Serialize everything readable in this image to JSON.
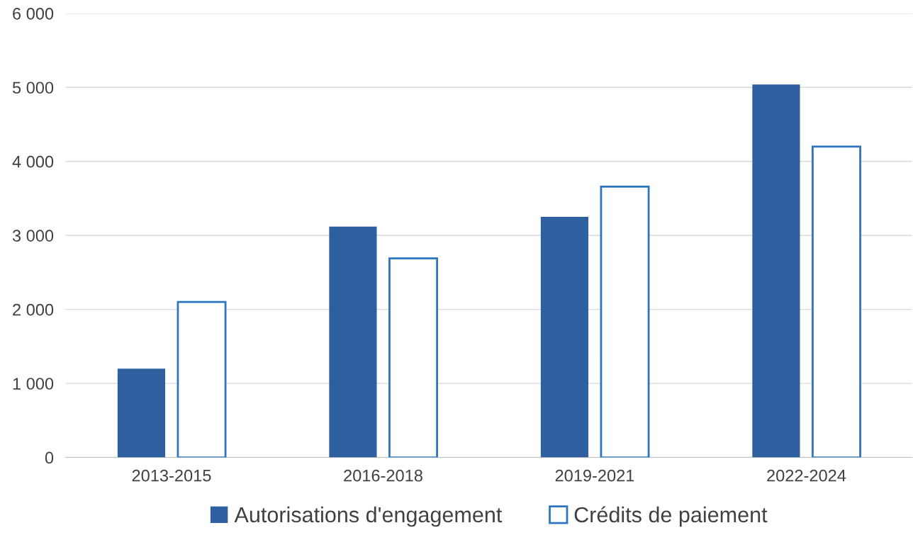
{
  "chart_data": {
    "type": "bar",
    "categories": [
      "2013-2015",
      "2016-2018",
      "2019-2021",
      "2022-2024"
    ],
    "series": [
      {
        "name": "Autorisations d'engagement",
        "color": "#2e5f9e",
        "values": [
          1200,
          3120,
          3250,
          5040
        ]
      },
      {
        "name": "Crédits de paiement",
        "color": "#2e75c0",
        "line_style": "solid",
        "values": [
          2100,
          2690,
          3660,
          4200
        ]
      }
    ],
    "ylim": [
      0,
      6000
    ],
    "yticks": [
      0,
      {
        "value": 1000,
        "label": "1 000"
      },
      {
        "value": 2000,
        "label": "2 000"
      },
      {
        "value": 3000,
        "label": "3 000"
      },
      {
        "value": 4000,
        "label": "4 000"
      },
      {
        "value": 5000,
        "label": "5 000"
      },
      {
        "value": 6000,
        "label": "6 000"
      }
    ],
    "grid": "y",
    "legend": "bottom"
  }
}
